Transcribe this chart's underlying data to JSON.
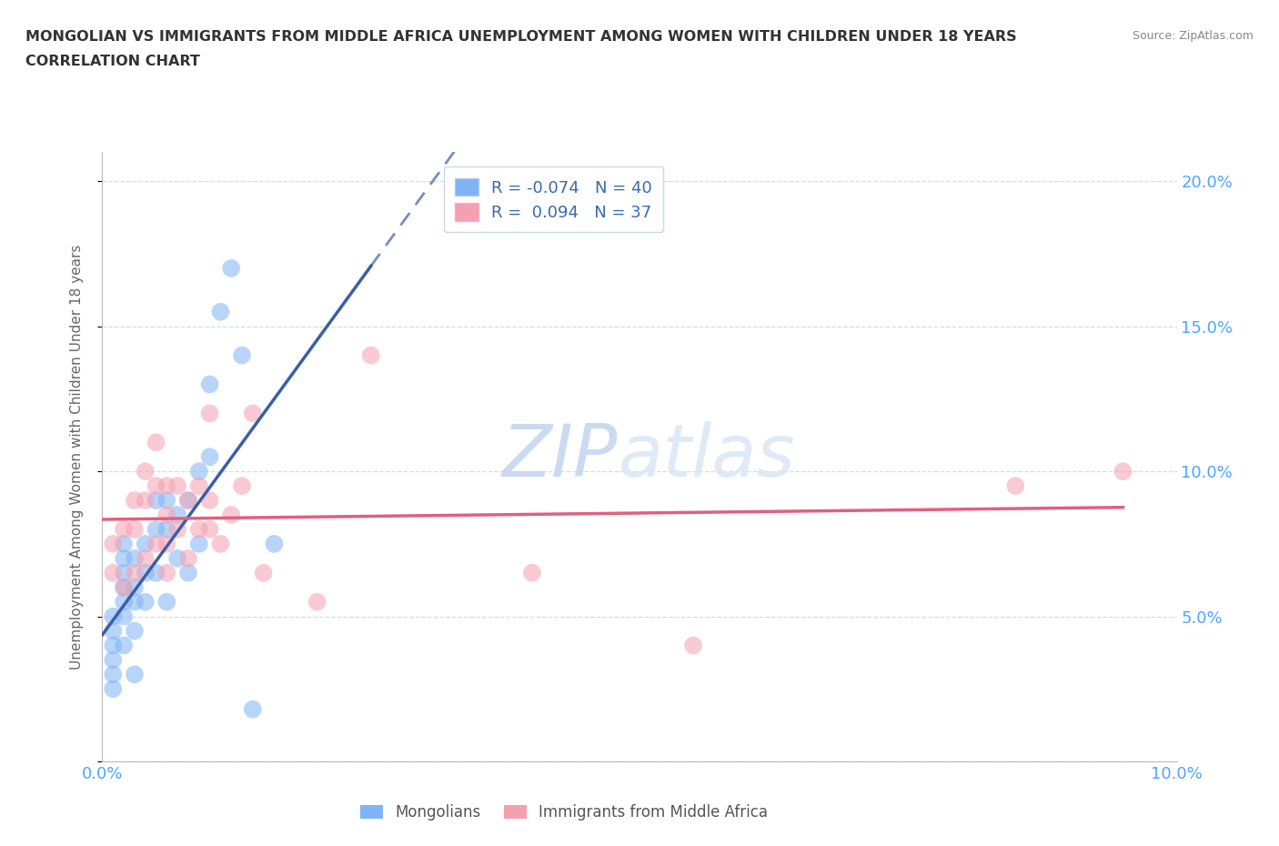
{
  "title_line1": "MONGOLIAN VS IMMIGRANTS FROM MIDDLE AFRICA UNEMPLOYMENT AMONG WOMEN WITH CHILDREN UNDER 18 YEARS",
  "title_line2": "CORRELATION CHART",
  "source": "Source: ZipAtlas.com",
  "ylabel": "Unemployment Among Women with Children Under 18 years",
  "xlim": [
    0.0,
    0.1
  ],
  "ylim": [
    0.0,
    0.21
  ],
  "xticks": [
    0.0,
    0.02,
    0.04,
    0.06,
    0.08,
    0.1
  ],
  "xtick_labels": [
    "0.0%",
    "",
    "",
    "",
    "",
    "10.0%"
  ],
  "ytick_labels": [
    "",
    "5.0%",
    "10.0%",
    "15.0%",
    "20.0%"
  ],
  "yticks": [
    0.0,
    0.05,
    0.1,
    0.15,
    0.2
  ],
  "mongolian_color": "#7fb3f5",
  "immigrant_color": "#f5a0b0",
  "trend_mongolian_color": "#3a5fa8",
  "trend_immigrant_color": "#e06080",
  "watermark_color": "#d8e8f8",
  "R_mongolian": -0.074,
  "N_mongolian": 40,
  "R_immigrant": 0.094,
  "N_immigrant": 37,
  "mongolian_x": [
    0.001,
    0.001,
    0.001,
    0.001,
    0.001,
    0.001,
    0.002,
    0.002,
    0.002,
    0.002,
    0.002,
    0.002,
    0.002,
    0.003,
    0.003,
    0.003,
    0.003,
    0.003,
    0.004,
    0.004,
    0.004,
    0.005,
    0.005,
    0.005,
    0.006,
    0.006,
    0.006,
    0.007,
    0.007,
    0.008,
    0.008,
    0.009,
    0.009,
    0.01,
    0.01,
    0.011,
    0.012,
    0.013,
    0.014,
    0.016
  ],
  "mongolian_y": [
    0.05,
    0.045,
    0.04,
    0.035,
    0.03,
    0.025,
    0.075,
    0.07,
    0.065,
    0.06,
    0.055,
    0.05,
    0.04,
    0.07,
    0.06,
    0.055,
    0.045,
    0.03,
    0.075,
    0.065,
    0.055,
    0.09,
    0.08,
    0.065,
    0.09,
    0.08,
    0.055,
    0.085,
    0.07,
    0.09,
    0.065,
    0.1,
    0.075,
    0.13,
    0.105,
    0.155,
    0.17,
    0.14,
    0.018,
    0.075
  ],
  "immigrant_x": [
    0.001,
    0.001,
    0.002,
    0.002,
    0.003,
    0.003,
    0.003,
    0.004,
    0.004,
    0.004,
    0.005,
    0.005,
    0.005,
    0.006,
    0.006,
    0.006,
    0.006,
    0.007,
    0.007,
    0.008,
    0.008,
    0.009,
    0.009,
    0.01,
    0.01,
    0.01,
    0.011,
    0.012,
    0.013,
    0.014,
    0.015,
    0.02,
    0.025,
    0.04,
    0.055,
    0.085,
    0.095
  ],
  "immigrant_y": [
    0.075,
    0.065,
    0.08,
    0.06,
    0.09,
    0.08,
    0.065,
    0.1,
    0.09,
    0.07,
    0.11,
    0.095,
    0.075,
    0.095,
    0.085,
    0.075,
    0.065,
    0.095,
    0.08,
    0.09,
    0.07,
    0.095,
    0.08,
    0.12,
    0.09,
    0.08,
    0.075,
    0.085,
    0.095,
    0.12,
    0.065,
    0.055,
    0.14,
    0.065,
    0.04,
    0.095,
    0.1
  ]
}
